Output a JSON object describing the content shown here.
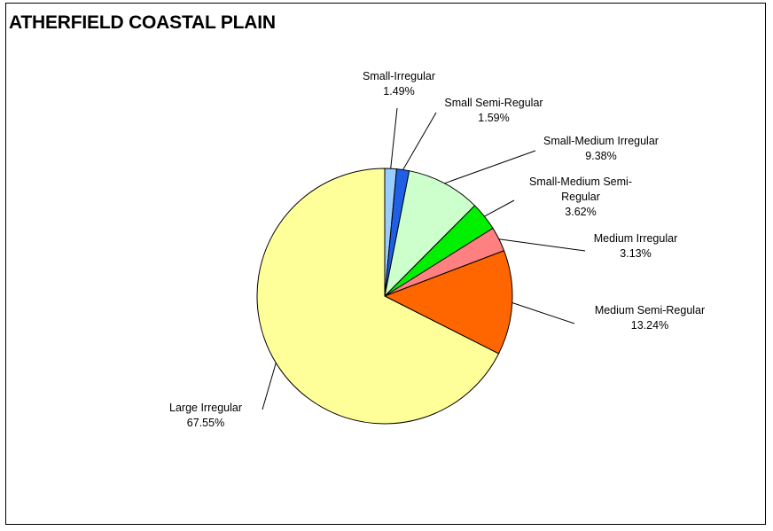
{
  "chart_data": {
    "type": "pie",
    "title": "ATHERFIELD COASTAL PLAIN",
    "slices": [
      {
        "label": "Small-Irregular",
        "value": 1.49,
        "value_label": "1.49%",
        "color": "#99CCFF"
      },
      {
        "label": "Small Semi-Regular",
        "value": 1.59,
        "value_label": "1.59%",
        "color": "#1F5FE6"
      },
      {
        "label": "Small-Medium Irregular",
        "value": 9.38,
        "value_label": "9.38%",
        "color": "#CCFFCC"
      },
      {
        "label": "Small-Medium Semi-Regular",
        "value": 3.62,
        "value_label": "3.62%",
        "color": "#00F000"
      },
      {
        "label": "Medium Irregular",
        "value": 3.13,
        "value_label": "3.13%",
        "color": "#FF8080"
      },
      {
        "label": "Medium Semi-Regular",
        "value": 13.24,
        "value_label": "13.24%",
        "color": "#FF6600"
      },
      {
        "label": "Large Irregular",
        "value": 67.55,
        "value_label": "67.55%",
        "color": "#FFFF99"
      }
    ],
    "legend": "none",
    "data_labels": "outside with leader lines"
  }
}
